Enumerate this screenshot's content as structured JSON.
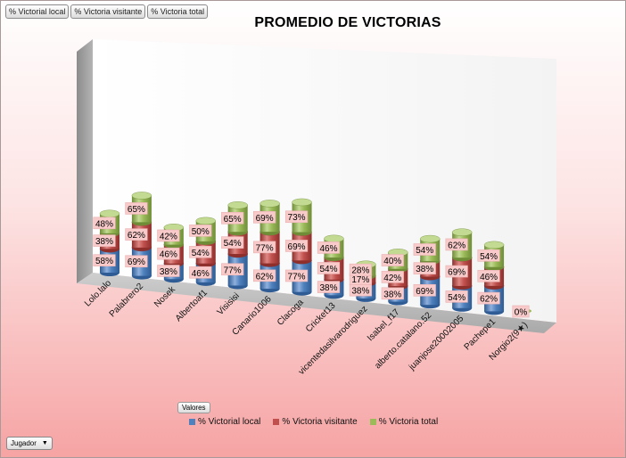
{
  "field_buttons": [
    "% Victorial local",
    "% Victoria visitante",
    "% Victoria total"
  ],
  "valores_label": "Valores",
  "jugador_label": "Jugador",
  "colors": {
    "local": "#4f81bd",
    "visitante": "#c0504d",
    "total": "#9bbb59",
    "label_bg": "#f8caca"
  },
  "chart_data": {
    "type": "bar",
    "title": "PROMEDIO DE VICTORIAS",
    "categories": [
      "Lolo.lalo",
      "Palabrero2",
      "Nosek",
      "Albertoaf1",
      "Visisisi",
      "Canario1006",
      "Clacoga",
      "Cricket13",
      "vicentedasilvarodriguez",
      "Isabel_f17",
      "alberto.catalano.52",
      "juanjose20002005",
      "Pachepe1",
      "Norgio2(9★)"
    ],
    "series": [
      {
        "name": "% Victorial local",
        "values": [
          58,
          69,
          38,
          46,
          77,
          62,
          77,
          38,
          38,
          38,
          69,
          54,
          62,
          0
        ]
      },
      {
        "name": "% Victoria visitante",
        "values": [
          38,
          62,
          46,
          54,
          54,
          77,
          69,
          54,
          17,
          42,
          38,
          69,
          46,
          0
        ]
      },
      {
        "name": "% Victoria total",
        "values": [
          48,
          65,
          42,
          50,
          65,
          69,
          73,
          46,
          28,
          40,
          54,
          62,
          54,
          0
        ]
      }
    ],
    "value_labels": {
      "local": [
        "58%",
        "69%",
        "38%",
        "46%",
        "77%",
        "62%",
        "77%",
        "38%",
        "38%",
        "38%",
        "69%",
        "54%",
        "62%",
        ""
      ],
      "visitante": [
        "38%",
        "62%",
        "46%",
        "54%",
        "54%",
        "77%",
        "69%",
        "54%",
        "17%",
        "42%",
        "38%",
        "69%",
        "46%",
        ""
      ],
      "total": [
        "48%",
        "65%",
        "42%",
        "50%",
        "65%",
        "69%",
        "73%",
        "46%",
        "28%",
        "40%",
        "54%",
        "62%",
        "54%",
        "0%"
      ]
    },
    "stacked": true,
    "legend_position": "bottom",
    "grid": false
  }
}
